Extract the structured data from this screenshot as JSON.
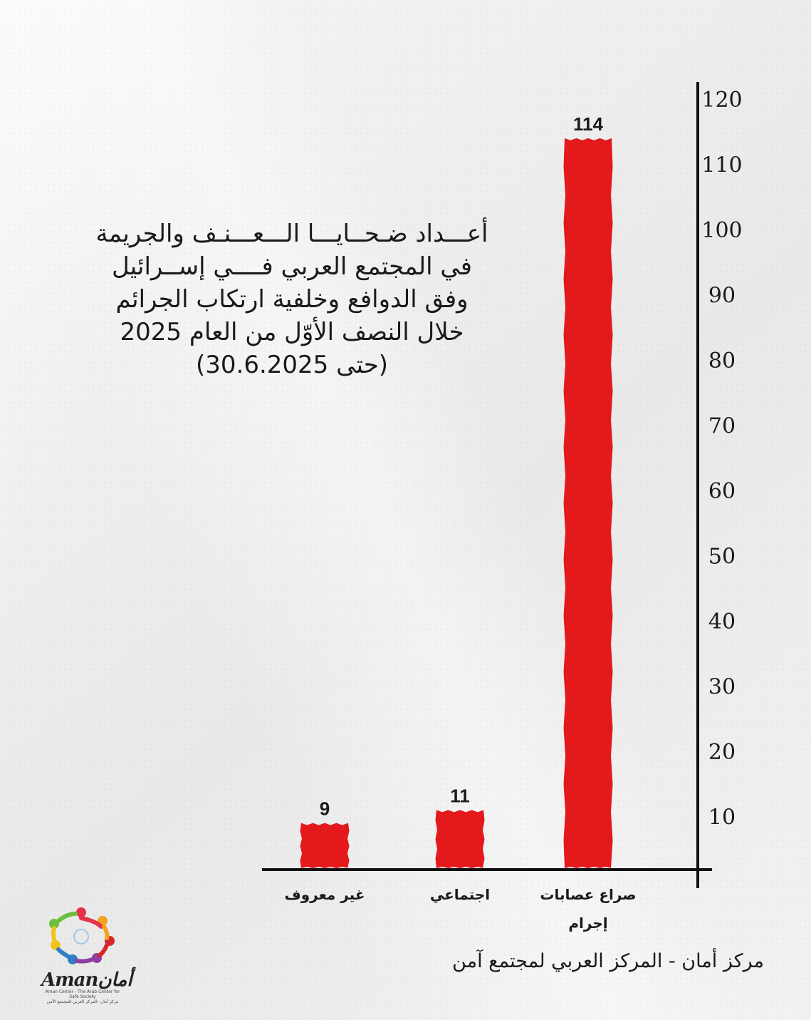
{
  "title_lines": [
    "أعـــداد ضـحــايـــا الـــعـــنـف والجريمة",
    "في المجتمع العربي فــــي إســرائيل",
    "وفق الدوافع وخلفية ارتكاب الجرائم",
    "خلال النصف الأوّل من العام 2025",
    "(حتى 30.6.2025)"
  ],
  "footer": {
    "credit": "مركز أمان  - المركز العربي لمجتمع آمن"
  },
  "logo": {
    "brand": "Amanأمان",
    "subtitle_en": "Aman Center - The Arab Center for Safe Society",
    "subtitle_ar": "مركز أمان -المركز العربي للمجتمع الآمن"
  },
  "colors": {
    "bar": "#e3191b",
    "axis": "#111111",
    "text": "#1a1a1a"
  },
  "chart_data": {
    "type": "bar",
    "categories": [
      "غير معروف",
      "اجتماعي",
      "صراع عصابات إجرام"
    ],
    "category_lines": [
      [
        "غير معروف"
      ],
      [
        "اجتماعي"
      ],
      [
        "صراع عصابات",
        "إجرام"
      ]
    ],
    "values": [
      9,
      11,
      114
    ],
    "data_labels": [
      "9",
      "11",
      "114"
    ],
    "ylim": [
      0,
      120
    ],
    "yticks": [
      10,
      20,
      30,
      40,
      50,
      60,
      70,
      80,
      90,
      100,
      110,
      120
    ],
    "ytick_labels": [
      "10",
      "20",
      "30",
      "40",
      "50",
      "60",
      "70",
      "80",
      "90",
      "100",
      "110",
      "120"
    ],
    "y_axis_position": "right",
    "grid": false,
    "legend": "none",
    "title": "",
    "xlabel": "",
    "ylabel": ""
  }
}
